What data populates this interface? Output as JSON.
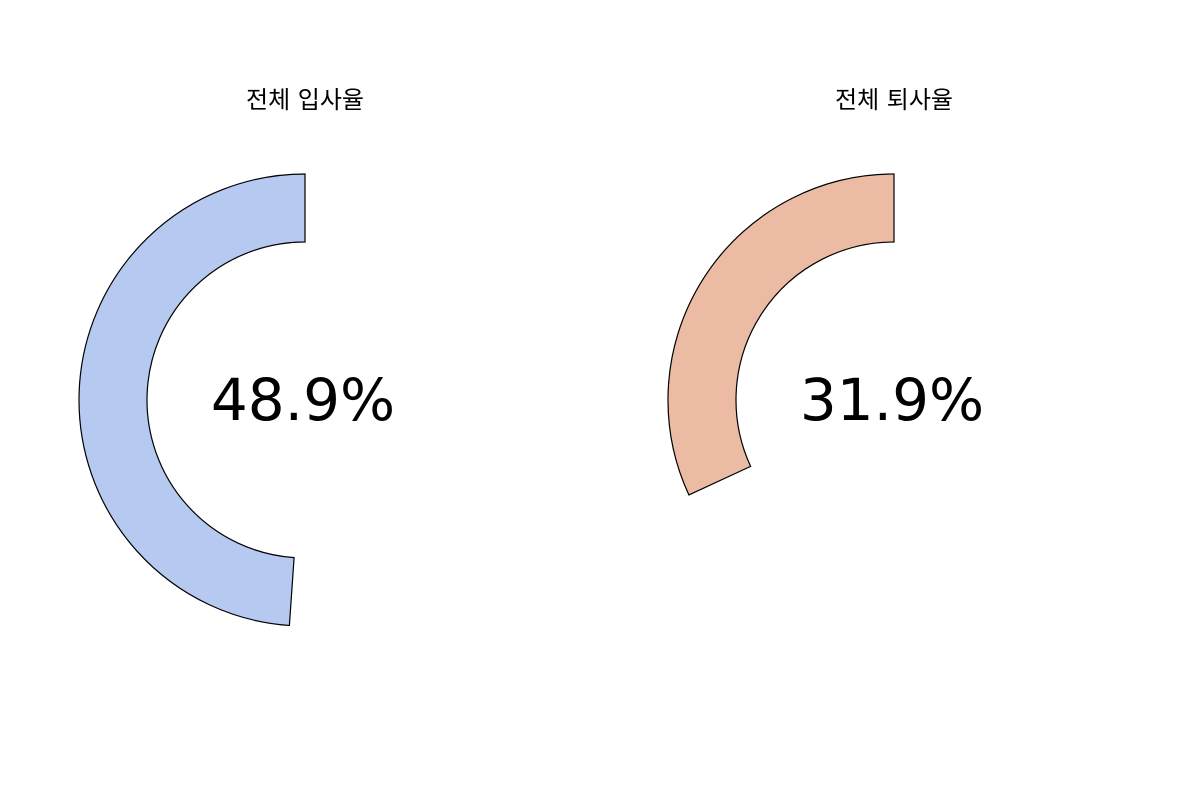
{
  "chart_data": [
    {
      "type": "pie",
      "title": "전체 입사율",
      "value_label": "48.9%",
      "values": [
        48.9,
        51.1
      ],
      "categories": [
        "입사율",
        ""
      ],
      "color": "#b5c9f1"
    },
    {
      "type": "pie",
      "title": "전체 퇴사율",
      "value_label": "31.9%",
      "values": [
        31.9,
        68.1
      ],
      "categories": [
        "퇴사율",
        ""
      ],
      "color": "#ebbba4"
    }
  ]
}
